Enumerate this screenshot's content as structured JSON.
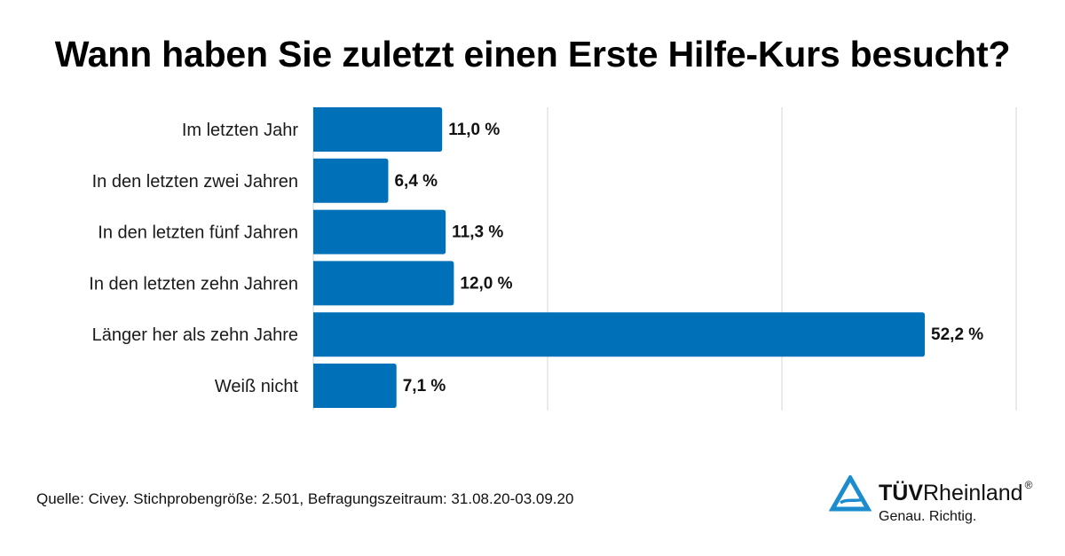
{
  "title": "Wann haben Sie zuletzt einen Erste Hilfe-Kurs besucht?",
  "colors": {
    "bar": "#0070b8",
    "grid": "#d4d4d4",
    "logo_blue": "#1c8ccf"
  },
  "chart_data": {
    "type": "bar",
    "orientation": "horizontal",
    "title": "Wann haben Sie zuletzt einen Erste Hilfe-Kurs besucht?",
    "xlabel": "",
    "ylabel": "",
    "xlim": [
      0,
      60
    ],
    "grid": true,
    "gridlines_at": [
      20,
      40,
      60
    ],
    "unit": "%",
    "categories": [
      "Im letzten Jahr",
      "In den letzten zwei Jahren",
      "In den letzten fünf Jahren",
      "In den letzten zehn Jahren",
      "Länger her als zehn Jahre",
      "Weiß nicht"
    ],
    "values": [
      11.0,
      6.4,
      11.3,
      12.0,
      52.2,
      7.1
    ],
    "value_labels": [
      "11,0 %",
      "6,4 %",
      "11,3 %",
      "12,0 %",
      "52,2 %",
      "7,1 %"
    ]
  },
  "footer": {
    "source": "Quelle: Civey. Stichprobengröße: 2.501, Befragungszeitraum: 31.08.20-03.09.20"
  },
  "logo": {
    "brand_bold": "TÜV",
    "brand_regular": "Rheinland",
    "registered": "®",
    "tagline": "Genau. Richtig.",
    "icon": "tuv-triangle-icon"
  }
}
